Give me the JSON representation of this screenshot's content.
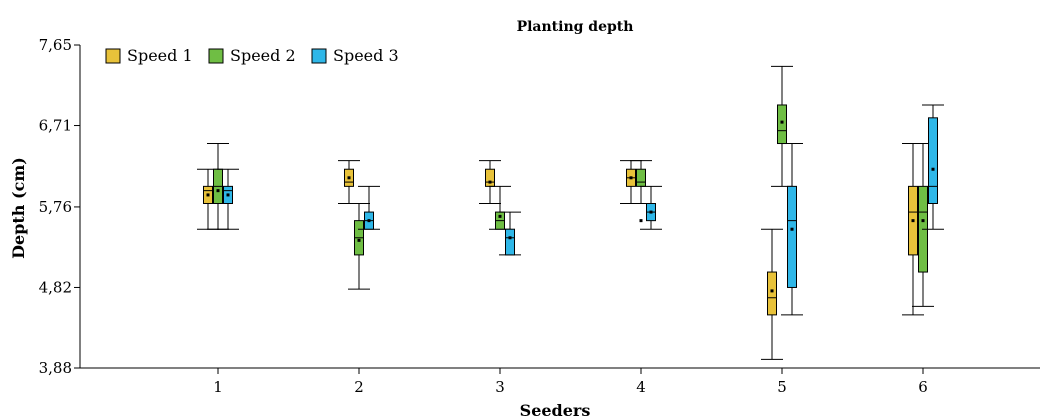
{
  "chart_data": {
    "type": "boxplot",
    "title": "Planting depth",
    "xlabel": "Seeders",
    "ylabel": "Depth (cm)",
    "ylim": [
      3.88,
      7.65
    ],
    "y_ticks": [
      "3,88",
      "4,82",
      "5,76",
      "6,71",
      "7,65"
    ],
    "y_tick_values": [
      3.88,
      4.82,
      5.76,
      6.71,
      7.65
    ],
    "categories": [
      "1",
      "2",
      "3",
      "4",
      "5",
      "6"
    ],
    "legend_position": "top-left",
    "grid": false,
    "series": [
      {
        "name": "Speed 1",
        "color": "#e8c23a",
        "boxes": [
          {
            "min": 5.5,
            "q1": 5.8,
            "median": 5.95,
            "q3": 6.0,
            "max": 6.2,
            "mean": 5.9
          },
          {
            "min": 5.8,
            "q1": 6.0,
            "median": 6.05,
            "q3": 6.2,
            "max": 6.3,
            "mean": 6.1
          },
          {
            "min": 5.8,
            "q1": 6.0,
            "median": 6.05,
            "q3": 6.2,
            "max": 6.3,
            "mean": 6.05
          },
          {
            "min": 5.8,
            "q1": 6.0,
            "median": 6.1,
            "q3": 6.2,
            "max": 6.3,
            "mean": 6.1
          },
          {
            "min": 3.98,
            "q1": 4.5,
            "median": 4.7,
            "q3": 5.0,
            "max": 5.5,
            "mean": 4.78
          },
          {
            "min": 4.5,
            "q1": 5.2,
            "median": 5.7,
            "q3": 6.0,
            "max": 6.5,
            "mean": 5.6
          }
        ]
      },
      {
        "name": "Speed 2",
        "color": "#6fbe44",
        "boxes": [
          {
            "min": 5.5,
            "q1": 5.8,
            "median": 6.0,
            "q3": 6.2,
            "max": 6.5,
            "mean": 5.95
          },
          {
            "min": 4.8,
            "q1": 5.2,
            "median": 5.4,
            "q3": 5.6,
            "max": 5.8,
            "mean": 5.37
          },
          {
            "min": 5.5,
            "q1": 5.5,
            "median": 5.6,
            "q3": 5.7,
            "max": 6.0,
            "mean": 5.65
          },
          {
            "min": 5.8,
            "q1": 6.0,
            "median": 6.05,
            "q3": 6.2,
            "max": 6.3,
            "mean": 5.6
          },
          {
            "min": 6.0,
            "q1": 6.5,
            "median": 6.65,
            "q3": 6.95,
            "max": 7.4,
            "mean": 6.75
          },
          {
            "min": 4.6,
            "q1": 5.0,
            "median": 5.7,
            "q3": 6.0,
            "max": 6.5,
            "mean": 5.6
          }
        ]
      },
      {
        "name": "Speed 3",
        "color": "#2fb7e8",
        "boxes": [
          {
            "min": 5.5,
            "q1": 5.8,
            "median": 5.95,
            "q3": 6.0,
            "max": 6.2,
            "mean": 5.9
          },
          {
            "min": 5.5,
            "q1": 5.5,
            "median": 5.6,
            "q3": 5.7,
            "max": 6.0,
            "mean": 5.6
          },
          {
            "min": 5.2,
            "q1": 5.2,
            "median": 5.4,
            "q3": 5.5,
            "max": 5.7,
            "mean": 5.4
          },
          {
            "min": 5.5,
            "q1": 5.6,
            "median": 5.7,
            "q3": 5.8,
            "max": 6.0,
            "mean": 5.7
          },
          {
            "min": 4.5,
            "q1": 4.82,
            "median": 5.6,
            "q3": 6.0,
            "max": 6.5,
            "mean": 5.5
          },
          {
            "min": 5.5,
            "q1": 5.8,
            "median": 6.0,
            "q3": 6.8,
            "max": 6.95,
            "mean": 6.2
          }
        ]
      }
    ]
  }
}
